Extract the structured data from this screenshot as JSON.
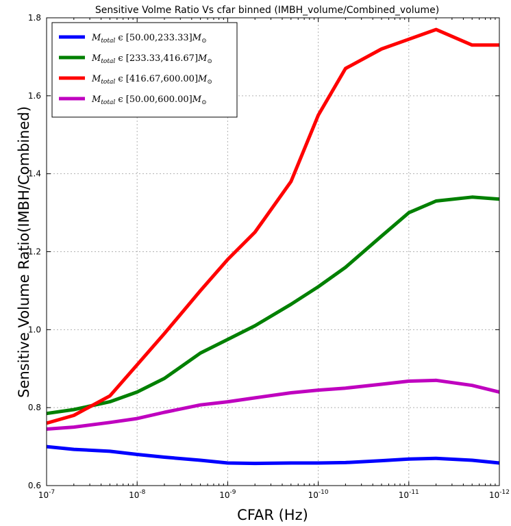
{
  "chart_data": {
    "type": "line",
    "title": "Sensitive Volme Ratio Vs cfar binned (IMBH_volume/Combined_volume)",
    "xlabel": "CFAR (Hz)",
    "ylabel": "Sensitive Volume Ratio(IMBH/Combined)",
    "x_scale": "log",
    "x_reversed": true,
    "xlim": [
      1e-07,
      1e-12
    ],
    "ylim": [
      0.6,
      1.8
    ],
    "grid": true,
    "legend_position": "top-left",
    "x_ticks": [
      {
        "value": 1e-07,
        "base": "10",
        "exp": "-7"
      },
      {
        "value": 1e-08,
        "base": "10",
        "exp": "-8"
      },
      {
        "value": 1e-09,
        "base": "10",
        "exp": "-9"
      },
      {
        "value": 1e-10,
        "base": "10",
        "exp": "-10"
      },
      {
        "value": 1e-11,
        "base": "10",
        "exp": "-11"
      },
      {
        "value": 1e-12,
        "base": "10",
        "exp": "-12"
      }
    ],
    "y_ticks": [
      "0.6",
      "0.8",
      "1.0",
      "1.2",
      "1.4",
      "1.6",
      "1.8"
    ],
    "x": [
      1e-07,
      5e-08,
      2e-08,
      1e-08,
      5e-09,
      2e-09,
      1e-09,
      5e-10,
      2e-10,
      1e-10,
      5e-11,
      2e-11,
      1e-11,
      5e-12,
      2e-12,
      1e-12
    ],
    "series": [
      {
        "name": "M_total ϵ [50.00,233.33]M_⊙",
        "legend_main": "M",
        "legend_sub": "total",
        "legend_range": " ϵ [50.00,233.33]",
        "legend_suffix_main": "M",
        "legend_suffix_sub": "⊙",
        "color": "#0000ff",
        "points": [
          [
            1e-07,
            0.7
          ],
          [
            5e-08,
            0.693
          ],
          [
            2e-08,
            0.688
          ],
          [
            1e-08,
            0.68
          ],
          [
            5e-09,
            0.673
          ],
          [
            2e-09,
            0.665
          ],
          [
            1e-09,
            0.658
          ],
          [
            5e-10,
            0.657
          ],
          [
            2e-10,
            0.658
          ],
          [
            1e-10,
            0.658
          ],
          [
            5e-11,
            0.659
          ],
          [
            2e-11,
            0.664
          ],
          [
            1e-11,
            0.668
          ],
          [
            5e-12,
            0.67
          ],
          [
            2e-12,
            0.665
          ],
          [
            1e-12,
            0.658
          ]
        ]
      },
      {
        "name": "M_total ϵ [233.33,416.67]M_⊙",
        "legend_main": "M",
        "legend_sub": "total",
        "legend_range": " ϵ [233.33,416.67]",
        "legend_suffix_main": "M",
        "legend_suffix_sub": "⊙",
        "color": "#008000",
        "points": [
          [
            1e-07,
            0.785
          ],
          [
            5e-08,
            0.795
          ],
          [
            2e-08,
            0.815
          ],
          [
            1e-08,
            0.84
          ],
          [
            5e-09,
            0.875
          ],
          [
            2e-09,
            0.94
          ],
          [
            1e-09,
            0.975
          ],
          [
            5e-10,
            1.01
          ],
          [
            2e-10,
            1.065
          ],
          [
            1e-10,
            1.11
          ],
          [
            5e-11,
            1.16
          ],
          [
            2e-11,
            1.24
          ],
          [
            1e-11,
            1.3
          ],
          [
            5e-12,
            1.33
          ],
          [
            2e-12,
            1.34
          ],
          [
            1e-12,
            1.335
          ]
        ]
      },
      {
        "name": "M_total ϵ [416.67,600.00]M_⊙",
        "legend_main": "M",
        "legend_sub": "total",
        "legend_range": " ϵ [416.67,600.00]",
        "legend_suffix_main": "M",
        "legend_suffix_sub": "⊙",
        "color": "#ff0000",
        "points": [
          [
            1e-07,
            0.76
          ],
          [
            5e-08,
            0.78
          ],
          [
            2e-08,
            0.83
          ],
          [
            1e-08,
            0.91
          ],
          [
            5e-09,
            0.99
          ],
          [
            2e-09,
            1.1
          ],
          [
            1e-09,
            1.18
          ],
          [
            5e-10,
            1.25
          ],
          [
            2e-10,
            1.38
          ],
          [
            1e-10,
            1.55
          ],
          [
            5e-11,
            1.67
          ],
          [
            2e-11,
            1.72
          ],
          [
            1e-11,
            1.745
          ],
          [
            5e-12,
            1.77
          ],
          [
            2e-12,
            1.73
          ],
          [
            1e-12,
            1.73
          ]
        ]
      },
      {
        "name": "M_total ϵ [50.00,600.00]M_⊙",
        "legend_main": "M",
        "legend_sub": "total",
        "legend_range": " ϵ [50.00,600.00]",
        "legend_suffix_main": "M",
        "legend_suffix_sub": "⊙",
        "color": "#bf00bf",
        "points": [
          [
            1e-07,
            0.745
          ],
          [
            5e-08,
            0.75
          ],
          [
            2e-08,
            0.762
          ],
          [
            1e-08,
            0.772
          ],
          [
            5e-09,
            0.788
          ],
          [
            2e-09,
            0.807
          ],
          [
            1e-09,
            0.815
          ],
          [
            5e-10,
            0.825
          ],
          [
            2e-10,
            0.838
          ],
          [
            1e-10,
            0.845
          ],
          [
            5e-11,
            0.85
          ],
          [
            2e-11,
            0.86
          ],
          [
            1e-11,
            0.868
          ],
          [
            5e-12,
            0.87
          ],
          [
            2e-12,
            0.857
          ],
          [
            1e-12,
            0.84
          ]
        ]
      }
    ]
  }
}
